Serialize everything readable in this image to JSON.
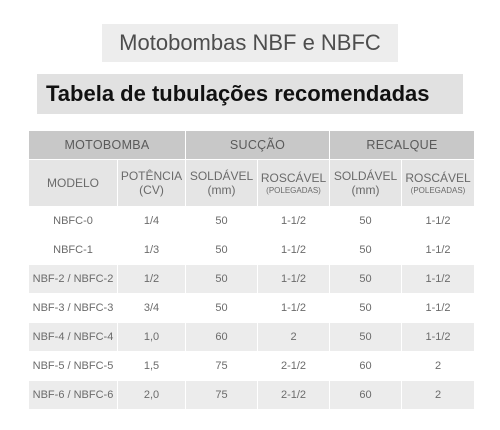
{
  "title": "Motobombas NBF e NBFC",
  "subtitle": "Tabela de tubulações recomendadas",
  "table": {
    "groups": [
      "MOTOBOMBA",
      "SUCÇÃO",
      "RECALQUE"
    ],
    "columns": {
      "modelo": "MODELO",
      "potencia_1": "POTÊNCIA",
      "potencia_2": "(CV)",
      "succao_soldavel_1": "SOLDÁVEL",
      "succao_soldavel_2": "(mm)",
      "succao_roscavel_1": "ROSCÁVEL",
      "succao_roscavel_2": "(POLEGADAS)",
      "recalque_soldavel_1": "SOLDÁVEL",
      "recalque_soldavel_2": "(mm)",
      "recalque_roscavel_1": "ROSCÁVEL",
      "recalque_roscavel_2": "(POLEGADAS)"
    },
    "rows": [
      {
        "modelo": "NBFC-0",
        "potencia": "1/4",
        "succao_soldavel": "50",
        "succao_roscavel": "1-1/2",
        "recalque_soldavel": "50",
        "recalque_roscavel": "1-1/2"
      },
      {
        "modelo": "NBFC-1",
        "potencia": "1/3",
        "succao_soldavel": "50",
        "succao_roscavel": "1-1/2",
        "recalque_soldavel": "50",
        "recalque_roscavel": "1-1/2"
      },
      {
        "modelo": "NBF-2 / NBFC-2",
        "potencia": "1/2",
        "succao_soldavel": "50",
        "succao_roscavel": "1-1/2",
        "recalque_soldavel": "50",
        "recalque_roscavel": "1-1/2"
      },
      {
        "modelo": "NBF-3 / NBFC-3",
        "potencia": "3/4",
        "succao_soldavel": "50",
        "succao_roscavel": "1-1/2",
        "recalque_soldavel": "50",
        "recalque_roscavel": "1-1/2"
      },
      {
        "modelo": "NBF-4 / NBFC-4",
        "potencia": "1,0",
        "succao_soldavel": "60",
        "succao_roscavel": "2",
        "recalque_soldavel": "50",
        "recalque_roscavel": "1-1/2"
      },
      {
        "modelo": "NBF-5 / NBFC-5",
        "potencia": "1,5",
        "succao_soldavel": "75",
        "succao_roscavel": "2-1/2",
        "recalque_soldavel": "60",
        "recalque_roscavel": "2"
      },
      {
        "modelo": "NBF-6 / NBFC-6",
        "potencia": "2,0",
        "succao_soldavel": "75",
        "succao_roscavel": "2-1/2",
        "recalque_soldavel": "60",
        "recalque_roscavel": "2"
      }
    ]
  }
}
